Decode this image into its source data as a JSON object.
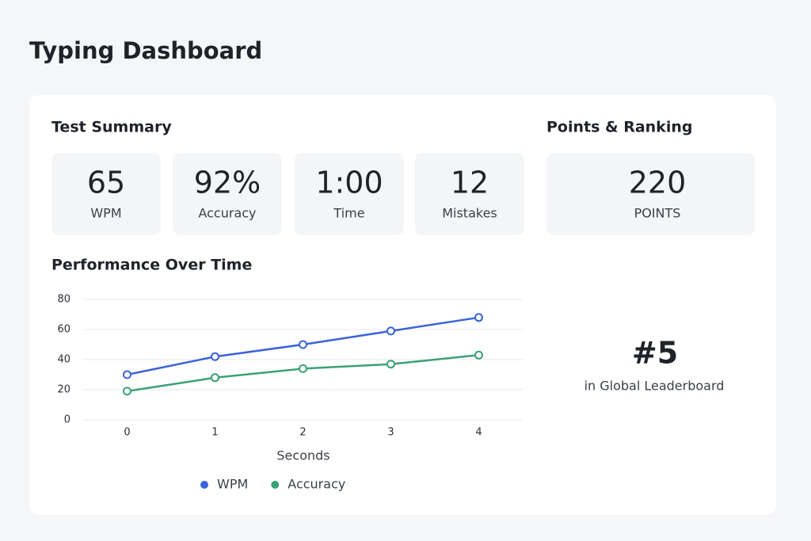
{
  "title": "Typing Dashboard",
  "summary": {
    "title": "Test Summary",
    "stats": [
      {
        "value": "65",
        "label": "WPM"
      },
      {
        "value": "92%",
        "label": "Accuracy"
      },
      {
        "value": "1:00",
        "label": "Time"
      },
      {
        "value": "12",
        "label": "Mistakes"
      }
    ]
  },
  "ranking": {
    "title": "Points & Ranking",
    "points": "220",
    "points_label": "POINTS",
    "rank": "#5",
    "rank_label": "in Global Leaderboard"
  },
  "chart_data": {
    "type": "line",
    "title": "Performance Over Time",
    "x_label": "Seconds",
    "x": [
      0,
      1,
      2,
      3,
      4
    ],
    "xlim": [
      -0.5,
      4.5
    ],
    "xticks": [
      0,
      1,
      2,
      3,
      4
    ],
    "ylim": [
      0,
      80
    ],
    "yticks": [
      0,
      20,
      40,
      60,
      80
    ],
    "grid": true,
    "legend": "bottom",
    "series": [
      {
        "name": "WPM",
        "color": "#3b63d8",
        "values": [
          30,
          42,
          50,
          59,
          68
        ]
      },
      {
        "name": "Accuracy",
        "color": "#3aa176",
        "values": [
          19,
          28,
          34,
          37,
          43
        ]
      }
    ]
  }
}
